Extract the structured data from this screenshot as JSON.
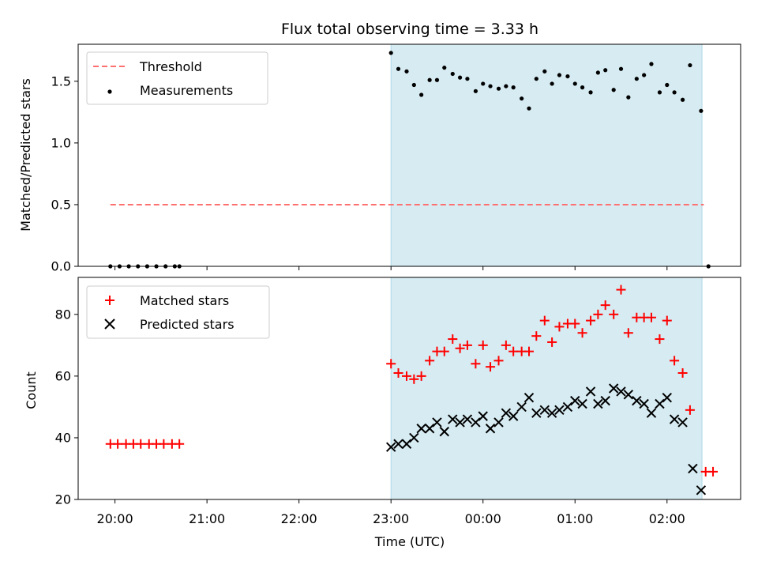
{
  "title": "Flux total observing time = 3.33 h",
  "chart_data": [
    {
      "type": "scatter",
      "ylabel": "Matched/Predicted stars",
      "xlabel": "",
      "x_unit": "hours since 20:00 UTC",
      "xlim": [
        -0.4,
        6.8
      ],
      "ylim": [
        0.0,
        1.8
      ],
      "yticks": [
        0.0,
        0.5,
        1.0,
        1.5
      ],
      "ytick_labels": [
        "0.0",
        "0.5",
        "1.0",
        "1.5"
      ],
      "xticks": [
        0,
        1,
        2,
        3,
        4,
        5,
        6
      ],
      "shaded_span": [
        3.0,
        6.38
      ],
      "legend": [
        "Threshold",
        "Measurements"
      ],
      "threshold": {
        "name": "Threshold",
        "value": 0.5,
        "x_range": [
          -0.05,
          6.4
        ],
        "color": "#ff7070"
      },
      "series": [
        {
          "name": "Measurements",
          "color": "#000000",
          "marker": "dot",
          "x": [
            -0.05,
            0.05,
            0.15,
            0.25,
            0.35,
            0.45,
            0.55,
            0.65,
            0.7,
            3.0,
            3.08,
            3.17,
            3.25,
            3.33,
            3.42,
            3.5,
            3.58,
            3.67,
            3.75,
            3.83,
            3.92,
            4.0,
            4.08,
            4.17,
            4.25,
            4.33,
            4.42,
            4.5,
            4.58,
            4.67,
            4.75,
            4.83,
            4.92,
            5.0,
            5.08,
            5.17,
            5.25,
            5.33,
            5.42,
            5.5,
            5.58,
            5.67,
            5.75,
            5.83,
            5.92,
            6.0,
            6.08,
            6.17,
            6.25,
            6.37,
            6.45
          ],
          "y": [
            0.0,
            0.0,
            0.0,
            0.0,
            0.0,
            0.0,
            0.0,
            0.0,
            0.0,
            1.73,
            1.6,
            1.58,
            1.47,
            1.39,
            1.51,
            1.51,
            1.61,
            1.56,
            1.53,
            1.52,
            1.42,
            1.48,
            1.46,
            1.44,
            1.46,
            1.45,
            1.36,
            1.28,
            1.52,
            1.58,
            1.48,
            1.55,
            1.54,
            1.48,
            1.45,
            1.41,
            1.57,
            1.59,
            1.43,
            1.6,
            1.37,
            1.52,
            1.55,
            1.64,
            1.41,
            1.47,
            1.41,
            1.35,
            1.63,
            1.26,
            0.0
          ]
        }
      ]
    },
    {
      "type": "scatter",
      "ylabel": "Count",
      "xlabel": "Time (UTC)",
      "x_unit": "hours since 20:00 UTC",
      "xlim": [
        -0.4,
        6.8
      ],
      "ylim": [
        20,
        92
      ],
      "yticks": [
        20,
        40,
        60,
        80
      ],
      "ytick_labels": [
        "20",
        "40",
        "60",
        "80"
      ],
      "xticks": [
        0,
        1,
        2,
        3,
        4,
        5,
        6
      ],
      "xtick_labels": [
        "20:00",
        "21:00",
        "22:00",
        "23:00",
        "00:00",
        "01:00",
        "02:00"
      ],
      "shaded_span": [
        3.0,
        6.38
      ],
      "legend": [
        "Matched stars",
        "Predicted stars"
      ],
      "series": [
        {
          "name": "Matched stars",
          "color": "#ff0000",
          "marker": "plus",
          "x": [
            -0.05,
            0.03,
            0.12,
            0.2,
            0.28,
            0.37,
            0.45,
            0.53,
            0.62,
            0.7,
            3.0,
            3.08,
            3.17,
            3.25,
            3.33,
            3.42,
            3.5,
            3.58,
            3.67,
            3.75,
            3.83,
            3.92,
            4.0,
            4.08,
            4.17,
            4.25,
            4.33,
            4.42,
            4.5,
            4.58,
            4.67,
            4.75,
            4.83,
            4.92,
            5.0,
            5.08,
            5.17,
            5.25,
            5.33,
            5.42,
            5.5,
            5.58,
            5.67,
            5.75,
            5.83,
            5.92,
            6.0,
            6.08,
            6.17,
            6.25,
            6.42,
            6.5
          ],
          "y": [
            38,
            38,
            38,
            38,
            38,
            38,
            38,
            38,
            38,
            38,
            64,
            61,
            60,
            59,
            60,
            65,
            68,
            68,
            72,
            69,
            70,
            64,
            70,
            63,
            65,
            70,
            68,
            68,
            68,
            73,
            78,
            71,
            76,
            77,
            77,
            74,
            78,
            80,
            83,
            80,
            88,
            74,
            79,
            79,
            79,
            72,
            78,
            65,
            61,
            49,
            29,
            29
          ]
        },
        {
          "name": "Predicted stars",
          "color": "#000000",
          "marker": "x",
          "x": [
            3.0,
            3.08,
            3.17,
            3.25,
            3.33,
            3.42,
            3.5,
            3.58,
            3.67,
            3.75,
            3.83,
            3.92,
            4.0,
            4.08,
            4.17,
            4.25,
            4.33,
            4.42,
            4.5,
            4.58,
            4.67,
            4.75,
            4.83,
            4.92,
            5.0,
            5.08,
            5.17,
            5.25,
            5.33,
            5.42,
            5.5,
            5.58,
            5.67,
            5.75,
            5.83,
            5.92,
            6.0,
            6.08,
            6.17,
            6.28,
            6.37
          ],
          "y": [
            37,
            38,
            38,
            40,
            43,
            43,
            45,
            42,
            46,
            45,
            46,
            45,
            47,
            43,
            45,
            48,
            47,
            50,
            53,
            48,
            49,
            48,
            49,
            50,
            52,
            51,
            55,
            51,
            52,
            56,
            55,
            54,
            52,
            51,
            48,
            51,
            53,
            46,
            45,
            30,
            23
          ]
        }
      ]
    }
  ]
}
